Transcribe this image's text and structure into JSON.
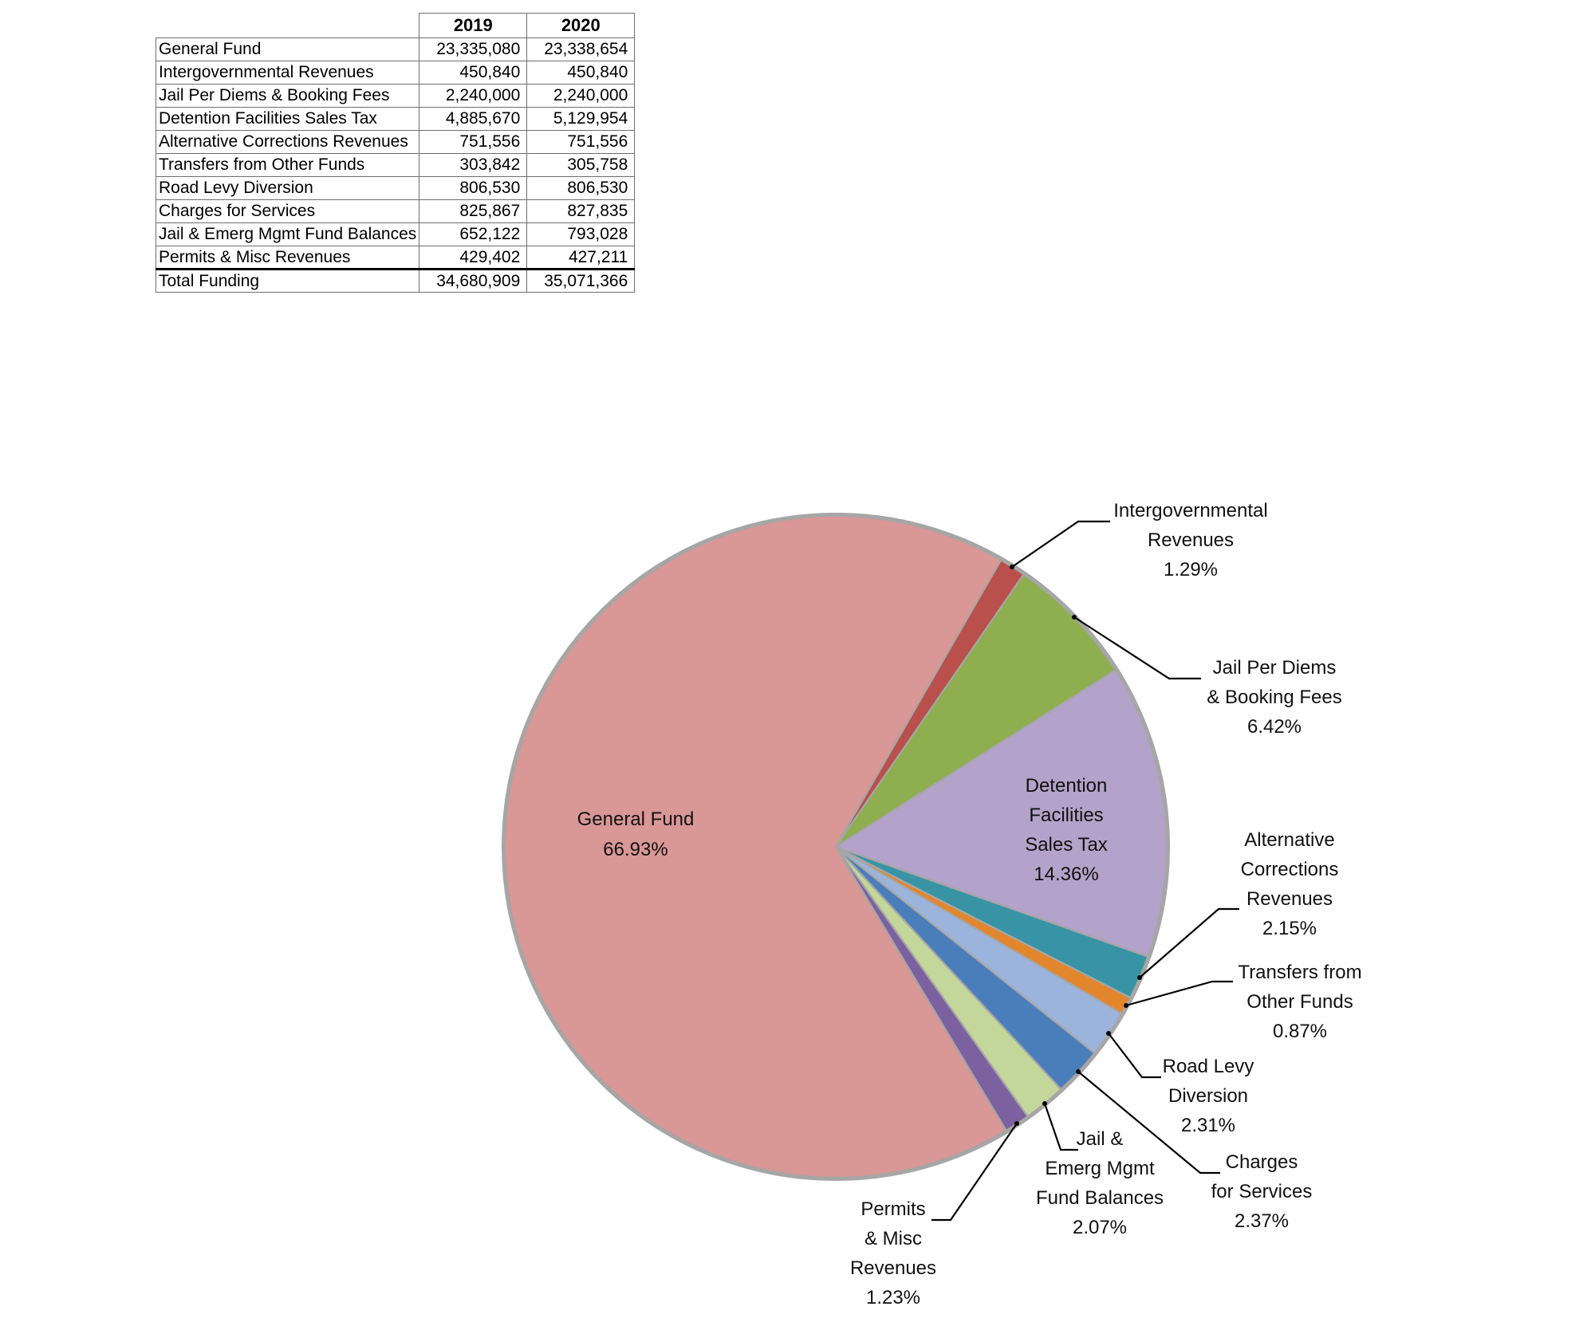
{
  "table": {
    "col_headers": [
      "2019",
      "2020"
    ],
    "rows": [
      {
        "label": "General Fund",
        "y2019": "23,335,080",
        "y2020": "23,338,654"
      },
      {
        "label": "Intergovernmental Revenues",
        "y2019": "450,840",
        "y2020": "450,840"
      },
      {
        "label": "Jail Per Diems & Booking Fees",
        "y2019": "2,240,000",
        "y2020": "2,240,000"
      },
      {
        "label": "Detention Facilities Sales Tax",
        "y2019": "4,885,670",
        "y2020": "5,129,954"
      },
      {
        "label": "Alternative Corrections Revenues",
        "y2019": "751,556",
        "y2020": "751,556"
      },
      {
        "label": "Transfers from Other Funds",
        "y2019": "303,842",
        "y2020": "305,758"
      },
      {
        "label": "Road Levy Diversion",
        "y2019": "806,530",
        "y2020": "806,530"
      },
      {
        "label": "Charges for Services",
        "y2019": "825,867",
        "y2020": "827,835"
      },
      {
        "label": "Jail & Emerg Mgmt Fund Balances",
        "y2019": "652,122",
        "y2020": "793,028"
      },
      {
        "label": "Permits & Misc Revenues",
        "y2019": "429,402",
        "y2020": "427,211"
      }
    ],
    "total_row": {
      "label": "Total Funding",
      "y2019": "34,680,909",
      "y2020": "35,071,366"
    }
  },
  "chart_data": {
    "type": "pie",
    "title": "",
    "legend": "none",
    "start_angle_deg": 149,
    "outline_color": "#A6A6A6",
    "leader_line_color": "#000000",
    "label_color": "#111111",
    "slices": [
      {
        "name": "General Fund",
        "pct": 66.93,
        "pct_label": "66.93%",
        "color": "#D99795",
        "label_placement": "inside",
        "label_lines": [
          "General Fund",
          "66.93%"
        ]
      },
      {
        "name": "Intergovernmental Revenues",
        "pct": 1.29,
        "pct_label": "1.29%",
        "color": "#B9504C",
        "label_placement": "outside",
        "label_lines": [
          "Intergovernmental",
          "Revenues",
          "1.29%"
        ]
      },
      {
        "name": "Jail Per Diems & Booking Fees",
        "pct": 6.42,
        "pct_label": "6.42%",
        "color": "#8EAE4F",
        "label_placement": "outside",
        "label_lines": [
          "Jail Per Diems",
          "& Booking Fees",
          "6.42%"
        ]
      },
      {
        "name": "Detention Facilities Sales Tax",
        "pct": 14.36,
        "pct_label": "14.36%",
        "color": "#B3A2C9",
        "label_placement": "inside",
        "label_lines": [
          "Detention",
          "Facilities",
          "Sales Tax",
          "14.36%"
        ]
      },
      {
        "name": "Alternative Corrections Revenues",
        "pct": 2.15,
        "pct_label": "2.15%",
        "color": "#3894A4",
        "label_placement": "outside",
        "label_lines": [
          "Alternative",
          "Corrections",
          "Revenues",
          "2.15%"
        ]
      },
      {
        "name": "Transfers from Other Funds",
        "pct": 0.87,
        "pct_label": "0.87%",
        "color": "#E2862D",
        "label_placement": "outside",
        "label_lines": [
          "Transfers from",
          "Other Funds",
          "0.87%"
        ]
      },
      {
        "name": "Road Levy Diversion",
        "pct": 2.31,
        "pct_label": "2.31%",
        "color": "#9CB4DC",
        "label_placement": "outside",
        "label_lines": [
          "Road Levy",
          "Diversion",
          "2.31%"
        ]
      },
      {
        "name": "Charges for Services",
        "pct": 2.37,
        "pct_label": "2.37%",
        "color": "#4A7EBB",
        "label_placement": "outside",
        "label_lines": [
          "Charges",
          "for Services",
          "2.37%"
        ]
      },
      {
        "name": "Jail & Emerg Mgmt Fund Balances",
        "pct": 2.07,
        "pct_label": "2.07%",
        "color": "#C4D79B",
        "label_placement": "outside",
        "label_lines": [
          "Jail &",
          "Emerg Mgmt",
          "Fund Balances",
          "2.07%"
        ]
      },
      {
        "name": "Permits & Misc Revenues",
        "pct": 1.23,
        "pct_label": "1.23%",
        "color": "#7C61A1",
        "label_placement": "outside",
        "label_lines": [
          "Permits",
          "& Misc",
          "Revenues",
          "1.23%"
        ]
      }
    ]
  }
}
